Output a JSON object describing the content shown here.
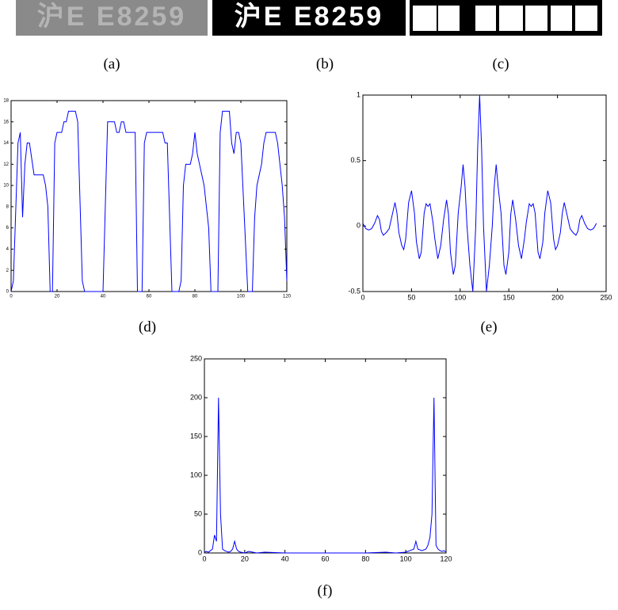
{
  "captions": [
    "(a)",
    "(b)",
    "(c)",
    "(d)",
    "(e)",
    "(f)"
  ],
  "plates": [
    "沪E E8259",
    "沪E E8259"
  ],
  "chart_data": [
    {
      "type": "line",
      "color": "#0000ff",
      "x": [
        0,
        1,
        3,
        4,
        5,
        6,
        7,
        8,
        10,
        14,
        15,
        16,
        17,
        18,
        19,
        20,
        22,
        23,
        24,
        25,
        28,
        29,
        31,
        32,
        40,
        42,
        45,
        46,
        47,
        48,
        49,
        50,
        54,
        55,
        57,
        58,
        59,
        66,
        67,
        68,
        70,
        73,
        74,
        75,
        76,
        78,
        79,
        80,
        81,
        82,
        84,
        85,
        86,
        87,
        90,
        91,
        92,
        95,
        96,
        97,
        98,
        99,
        100,
        103,
        105,
        106,
        107,
        108,
        109,
        110,
        111,
        115,
        116,
        118,
        119,
        120
      ],
      "values": [
        0,
        1,
        14,
        15,
        7,
        12,
        14,
        14,
        11,
        11,
        10,
        8,
        0,
        0,
        14,
        15,
        15,
        16,
        16,
        17,
        17,
        16,
        1,
        0,
        0,
        16,
        16,
        15,
        15,
        16,
        16,
        15,
        15,
        0,
        0,
        14,
        15,
        15,
        14,
        14,
        0,
        0,
        1,
        10,
        12,
        12,
        13,
        15,
        13,
        12,
        10,
        8,
        6,
        0,
        0,
        15,
        17,
        17,
        14,
        13,
        15,
        15,
        14,
        0,
        0,
        7,
        10,
        11,
        12,
        14,
        15,
        15,
        14,
        10,
        7,
        1
      ],
      "xlim": [
        0,
        120
      ],
      "ylim": [
        0,
        18
      ],
      "xticks": [
        0,
        20,
        40,
        60,
        80,
        100,
        120
      ],
      "yticks": [
        0,
        2,
        4,
        6,
        8,
        10,
        12,
        14,
        16,
        18
      ]
    },
    {
      "type": "line",
      "color": "#0000ff",
      "x": [
        0,
        3,
        6,
        9,
        12,
        15,
        17,
        19,
        21,
        24,
        27,
        30,
        33,
        35,
        37,
        40,
        42,
        44,
        47,
        50,
        53,
        55,
        58,
        60,
        63,
        65,
        67,
        69,
        72,
        74,
        77,
        80,
        83,
        86,
        88,
        90,
        93,
        95,
        98,
        101,
        103,
        105,
        107,
        110,
        113,
        116,
        118,
        120,
        122,
        124,
        127,
        130,
        133,
        135,
        137,
        139,
        142,
        145,
        147,
        150,
        152,
        154,
        157,
        160,
        163,
        166,
        168,
        171,
        173,
        175,
        177,
        180,
        182,
        185,
        187,
        190,
        193,
        196,
        198,
        200,
        203,
        205,
        207,
        210,
        213,
        216,
        219,
        221,
        223,
        225,
        228,
        231,
        234,
        237,
        240
      ],
      "values": [
        0.02,
        -0.02,
        -0.03,
        -0.02,
        0.02,
        0.08,
        0.05,
        -0.04,
        -0.07,
        -0.05,
        -0.02,
        0.08,
        0.18,
        0.1,
        -0.05,
        -0.15,
        -0.18,
        -0.1,
        0.18,
        0.27,
        0.1,
        -0.12,
        -0.25,
        -0.2,
        0.1,
        0.17,
        0.15,
        0.17,
        0.03,
        -0.1,
        -0.25,
        -0.15,
        0.05,
        0.2,
        0.09,
        -0.2,
        -0.37,
        -0.3,
        0.1,
        0.3,
        0.47,
        0.3,
        0,
        -0.3,
        -0.5,
        0,
        0.6,
        1,
        0.6,
        0,
        -0.5,
        -0.3,
        0,
        0.3,
        0.47,
        0.3,
        0.1,
        -0.3,
        -0.37,
        -0.2,
        0.09,
        0.2,
        0.05,
        -0.15,
        -0.25,
        -0.1,
        0.03,
        0.17,
        0.15,
        0.17,
        0.1,
        -0.2,
        -0.25,
        -0.12,
        0.1,
        0.27,
        0.18,
        -0.1,
        -0.18,
        -0.15,
        -0.05,
        0.1,
        0.18,
        0.08,
        -0.02,
        -0.05,
        -0.07,
        -0.04,
        0.05,
        0.08,
        0.02,
        -0.02,
        -0.03,
        -0.02,
        0.02
      ],
      "xlim": [
        0,
        250
      ],
      "ylim": [
        -0.5,
        1
      ],
      "xticks": [
        0,
        50,
        100,
        150,
        200,
        250
      ],
      "yticks": [
        -0.5,
        0,
        0.5,
        1
      ]
    },
    {
      "type": "line",
      "color": "#0000ff",
      "x": [
        0,
        1,
        2,
        3,
        4,
        5,
        6,
        7,
        8,
        9,
        10,
        11,
        12,
        13,
        14,
        15,
        16,
        17,
        18,
        20,
        22,
        24,
        26,
        30,
        40,
        60,
        80,
        90,
        95,
        100,
        102,
        104,
        105,
        106,
        108,
        110,
        111,
        112,
        113,
        114,
        115,
        116,
        117,
        118,
        119,
        120
      ],
      "values": [
        1,
        2,
        1,
        3,
        5,
        23,
        15,
        200,
        50,
        5,
        3,
        2,
        1,
        2,
        5,
        15,
        5,
        2,
        1,
        0,
        2,
        1,
        0,
        1,
        0,
        0,
        0,
        1,
        0,
        1,
        3,
        5,
        15,
        5,
        3,
        5,
        10,
        20,
        50,
        200,
        10,
        5,
        3,
        2,
        3,
        1
      ],
      "xlim": [
        0,
        120
      ],
      "ylim": [
        0,
        250
      ],
      "xticks": [
        0,
        20,
        40,
        60,
        80,
        100,
        120
      ],
      "yticks": [
        0,
        50,
        100,
        150,
        200,
        250
      ]
    }
  ]
}
